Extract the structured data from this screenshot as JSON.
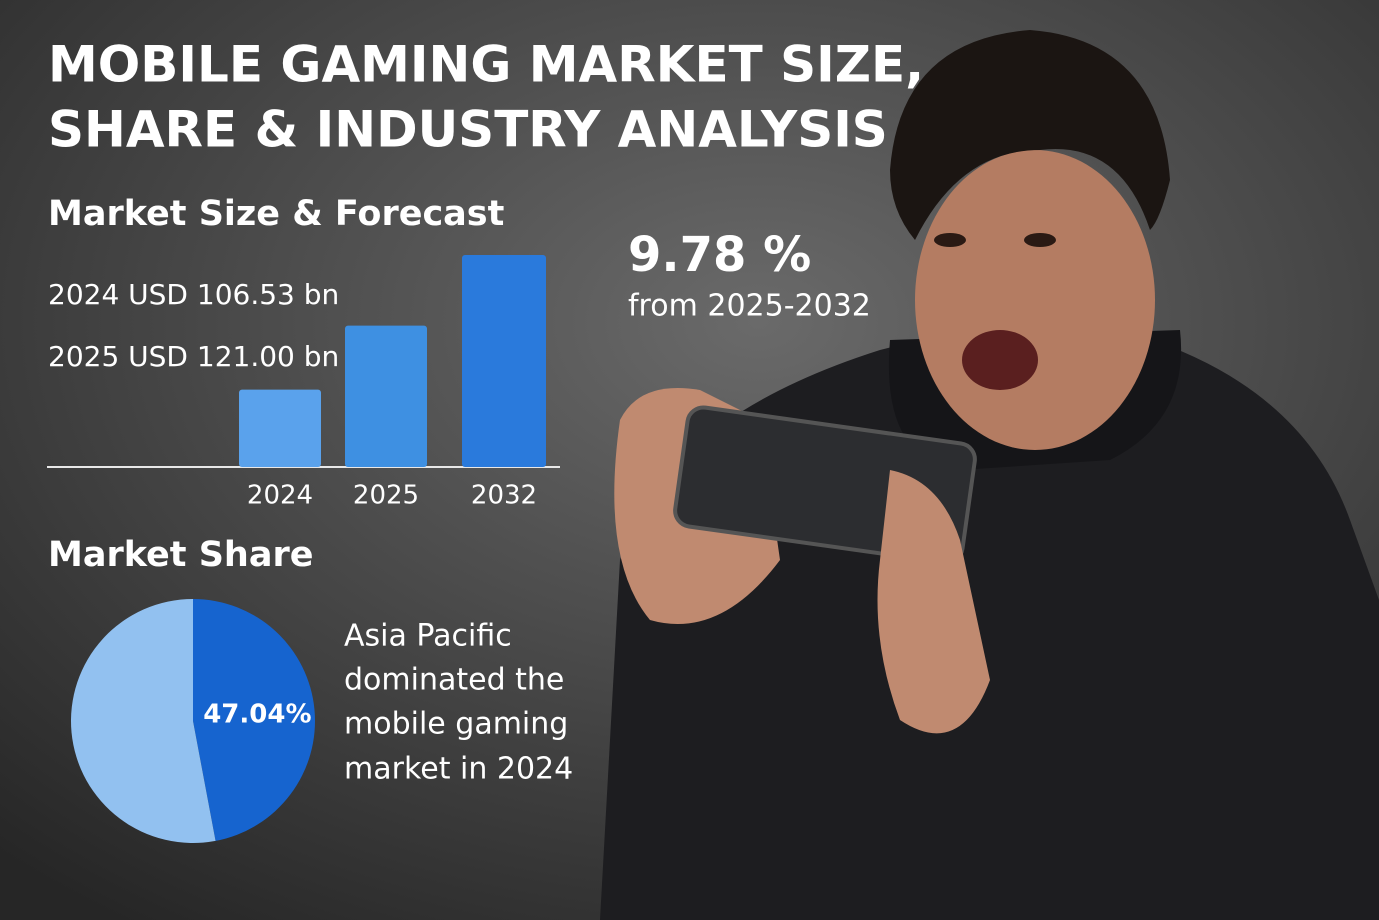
{
  "title_lines": [
    "MOBILE GAMING MARKET SIZE,",
    "SHARE & INDUSTRY ANALYSIS"
  ],
  "cagr": {
    "value": "9.78 %",
    "caption": "from 2025-2032"
  },
  "share_note": [
    "Asia Pacific",
    "dominated the",
    "mobile gaming",
    "market in 2024"
  ],
  "chart_data": [
    {
      "type": "bar",
      "title": "Market Size & Forecast",
      "categories": [
        "2024",
        "2025",
        "2032"
      ],
      "values": [
        106.53,
        121.0,
        137
      ],
      "value_labels": [
        "2024 USD 106.53 bn",
        "2025 USD 121.00 bn",
        null
      ],
      "colors": [
        "#5aa2ec",
        "#3e90e2",
        "#2a7adc"
      ],
      "ylim": [
        89,
        137
      ]
    },
    {
      "type": "pie",
      "title": "Market Share",
      "values": [
        47.04,
        52.96
      ],
      "value_labels": [
        "47.04%",
        null
      ],
      "colors": [
        "#1664cf",
        "#92c1f0"
      ]
    }
  ]
}
